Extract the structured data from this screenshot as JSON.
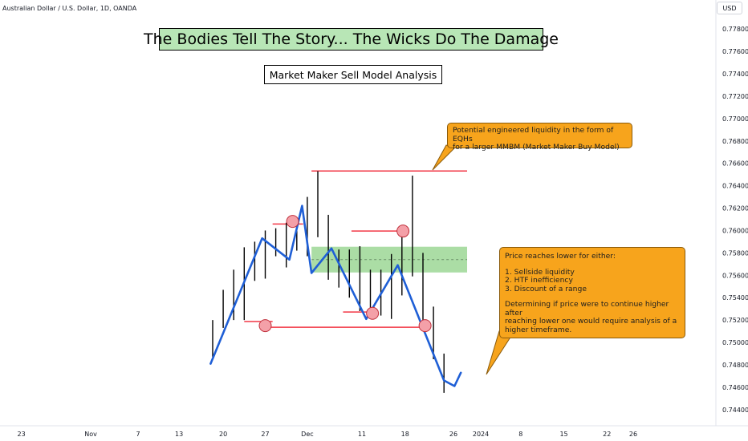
{
  "header": {
    "symbol": "Australian Dollar / U.S. Dollar, 1D, OANDA",
    "currency": "USD"
  },
  "title": "The Bodies Tell The Story... The Wicks Do The Damage",
  "subtitle": "Market Maker Sell Model Analysis",
  "callouts": {
    "eqh": {
      "line1": "Potential engineered liquidity in the form of EQHs",
      "line2": "for a larger MMBM (Market Maker Buy Model)"
    },
    "reasons": {
      "heading": "Price reaches lower for either:",
      "item1": "1. Sellside liquidity",
      "item2": "2. HTF inefficiency",
      "item3": "3. Discount of a range",
      "note1": "Determining if price were to continue higher after",
      "note2": "reaching lower one would require analysis of a",
      "note3": "higher timeframe."
    }
  },
  "colors": {
    "zigzag": "#1f5fd6",
    "level_line": "#f23645",
    "marker_fill": "#f4a0a8",
    "zone_fill": "#a6dba0",
    "callout_fill": "#f7a41c",
    "title_fill": "#b8e6b6"
  },
  "chart_data": {
    "type": "line",
    "y_axis": {
      "range": [
        0.7432,
        0.7788
      ],
      "ticks": [
        "0.77800",
        "0.77600",
        "0.77400",
        "0.77200",
        "0.77000",
        "0.76800",
        "0.76600",
        "0.76400",
        "0.76200",
        "0.76000",
        "0.75800",
        "0.75600",
        "0.75400",
        "0.75200",
        "0.75000",
        "0.74800",
        "0.74600",
        "0.74400"
      ]
    },
    "x_axis": {
      "ticks": [
        {
          "label": "23",
          "i": -18.2
        },
        {
          "label": "Nov",
          "i": -11.6
        },
        {
          "label": "7",
          "i": -7.1
        },
        {
          "label": "13",
          "i": -3.2
        },
        {
          "label": "20",
          "i": 1.0
        },
        {
          "label": "27",
          "i": 5.0
        },
        {
          "label": "Dec",
          "i": 9.0
        },
        {
          "label": "11",
          "i": 14.2
        },
        {
          "label": "18",
          "i": 18.3
        },
        {
          "label": "26",
          "i": 22.9
        },
        {
          "label": "2024",
          "i": 25.5
        },
        {
          "label": "8",
          "i": 29.3
        },
        {
          "label": "15",
          "i": 33.4
        },
        {
          "label": "22",
          "i": 37.5
        },
        {
          "label": "26",
          "i": 40.0
        }
      ]
    },
    "candles": [
      {
        "i": 0,
        "h": 0.752,
        "l": 0.7487
      },
      {
        "i": 1,
        "h": 0.7547,
        "l": 0.7513
      },
      {
        "i": 2,
        "h": 0.7565,
        "l": 0.752
      },
      {
        "i": 3,
        "h": 0.7585,
        "l": 0.752
      },
      {
        "i": 4,
        "h": 0.759,
        "l": 0.7555
      },
      {
        "i": 5,
        "h": 0.76,
        "l": 0.7557
      },
      {
        "i": 6,
        "h": 0.7602,
        "l": 0.7577
      },
      {
        "i": 7,
        "h": 0.7607,
        "l": 0.7567
      },
      {
        "i": 8,
        "h": 0.761,
        "l": 0.7582
      },
      {
        "i": 9,
        "h": 0.763,
        "l": 0.7577
      },
      {
        "i": 10,
        "h": 0.7653,
        "l": 0.7594
      },
      {
        "i": 11,
        "h": 0.7614,
        "l": 0.7556
      },
      {
        "i": 12,
        "h": 0.7583,
        "l": 0.7549
      },
      {
        "i": 13,
        "h": 0.7583,
        "l": 0.754
      },
      {
        "i": 14,
        "h": 0.7586,
        "l": 0.7528
      },
      {
        "i": 15,
        "h": 0.7565,
        "l": 0.7528
      },
      {
        "i": 16,
        "h": 0.7565,
        "l": 0.7524
      },
      {
        "i": 17,
        "h": 0.7579,
        "l": 0.7521
      },
      {
        "i": 18,
        "h": 0.7603,
        "l": 0.7542
      },
      {
        "i": 19,
        "h": 0.7649,
        "l": 0.7559
      },
      {
        "i": 20,
        "h": 0.758,
        "l": 0.7513
      },
      {
        "i": 21,
        "h": 0.7532,
        "l": 0.7485
      },
      {
        "i": 22,
        "h": 0.749,
        "l": 0.7455
      }
    ],
    "zigzag": [
      {
        "i": -0.2,
        "v": 0.7481
      },
      {
        "i": 4.7,
        "v": 0.7593
      },
      {
        "i": 7.3,
        "v": 0.7574
      },
      {
        "i": 8.5,
        "v": 0.7622
      },
      {
        "i": 9.4,
        "v": 0.7562
      },
      {
        "i": 11.3,
        "v": 0.7584
      },
      {
        "i": 14.6,
        "v": 0.7521
      },
      {
        "i": 17.6,
        "v": 0.7569
      },
      {
        "i": 22.0,
        "v": 0.7466
      },
      {
        "i": 23.0,
        "v": 0.7461
      },
      {
        "i": 23.6,
        "v": 0.7473
      }
    ],
    "levels": [
      {
        "from": 9.4,
        "to": 24.2,
        "v": 0.76532
      },
      {
        "from": 5.7,
        "to": 8.6,
        "v": 0.76058
      },
      {
        "from": 13.2,
        "to": 18.0,
        "v": 0.75995
      },
      {
        "from": 12.4,
        "to": 15.1,
        "v": 0.75272
      },
      {
        "from": 3.0,
        "to": 5.7,
        "v": 0.75187
      },
      {
        "from": 5.0,
        "to": 20.2,
        "v": 0.75136
      }
    ],
    "markers": [
      {
        "i": 7.6,
        "v": 0.76081
      },
      {
        "i": 18.1,
        "v": 0.75995
      },
      {
        "i": 15.2,
        "v": 0.7526
      },
      {
        "i": 5.0,
        "v": 0.7515
      },
      {
        "i": 20.2,
        "v": 0.7515
      }
    ],
    "zone": {
      "from": 9.4,
      "to": 24.2,
      "top": 0.75855,
      "bottom": 0.75625,
      "mid": 0.7574
    },
    "grid": false
  }
}
